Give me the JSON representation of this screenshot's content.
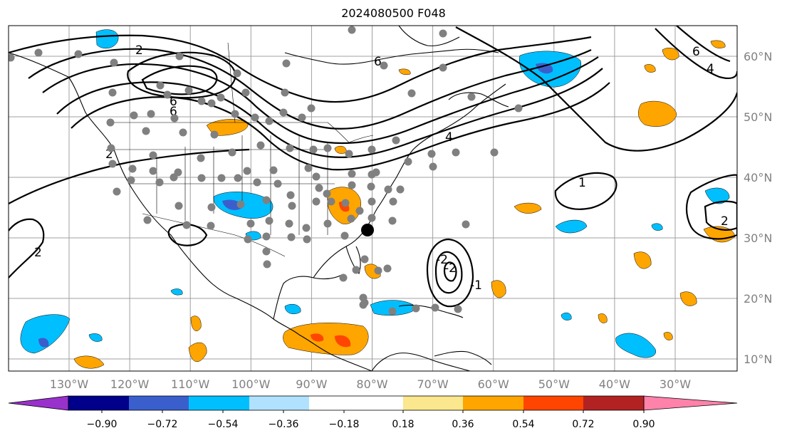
{
  "title": "2024080500 F048",
  "latitudes": [
    {
      "label": "10°N",
      "value": 10
    },
    {
      "label": "20°N",
      "value": 20
    },
    {
      "label": "30°N",
      "value": 30
    },
    {
      "label": "40°N",
      "value": 40
    },
    {
      "label": "50°N",
      "value": 50
    },
    {
      "label": "60°N",
      "value": 60
    }
  ],
  "longitudes": [
    {
      "label": "130°W",
      "value": -130
    },
    {
      "label": "120°W",
      "value": -120
    },
    {
      "label": "110°W",
      "value": -110
    },
    {
      "label": "100°W",
      "value": -100
    },
    {
      "label": "90°W",
      "value": -90
    },
    {
      "label": "80°W",
      "value": -80
    },
    {
      "label": "70°W",
      "value": -70
    },
    {
      "label": "60°W",
      "value": -60
    },
    {
      "label": "50°W",
      "value": -50
    },
    {
      "label": "40°W",
      "value": -40
    },
    {
      "label": "30°W",
      "value": -30
    }
  ],
  "contour_labels": [
    "2",
    "2",
    "6",
    "6",
    "4",
    "6",
    "2",
    "-2",
    "-2",
    "1",
    "-1",
    "2",
    "4",
    "6"
  ],
  "colorbar": {
    "ticks": [
      "−0.90",
      "−0.72",
      "−0.54",
      "−0.36",
      "−0.18",
      "0.18",
      "0.36",
      "0.54",
      "0.72",
      "0.90"
    ],
    "colors": [
      "#9932cc",
      "#00008b",
      "#3a5fcd",
      "#00bfff",
      "#b0e2ff",
      "#ffffff",
      "#fbe78d",
      "#ffa500",
      "#ff4500",
      "#b22222",
      "#ff82ab"
    ]
  },
  "marker_colors": {
    "station": "#808080",
    "highlight": "#000000"
  }
}
